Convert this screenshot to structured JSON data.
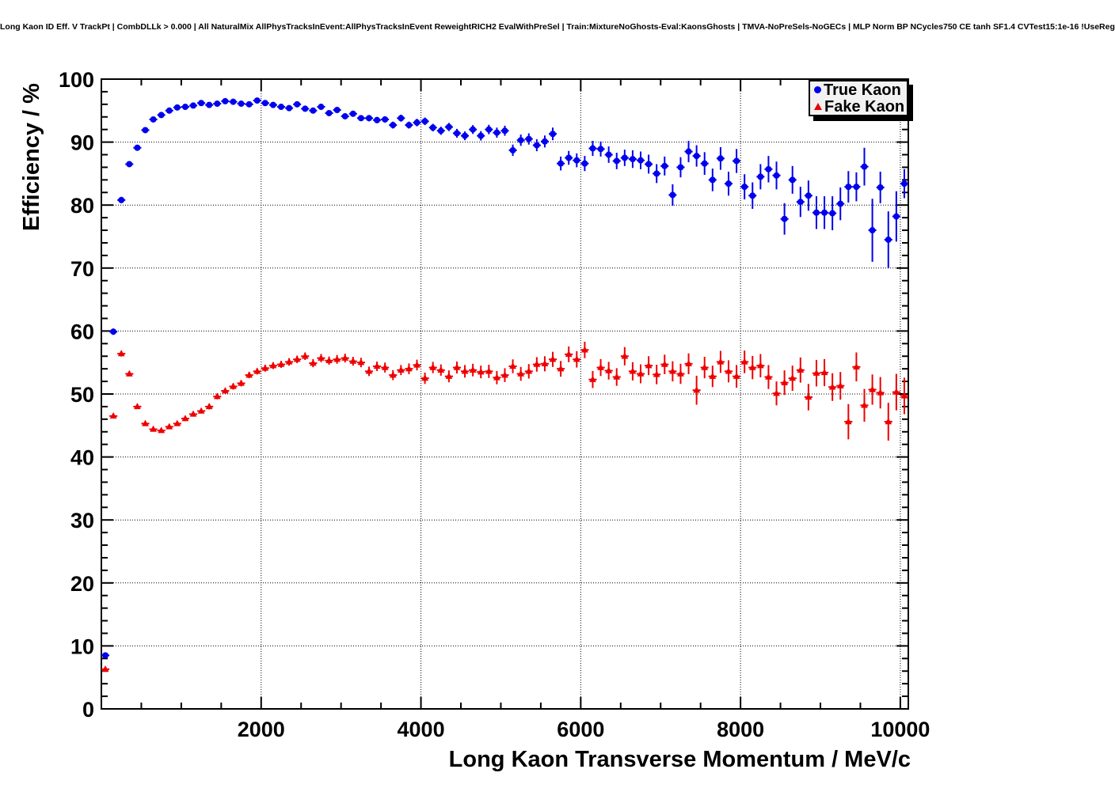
{
  "title": "Long Kaon ID Eff. V TrackPt | CombDLLk > 0.000 | All NaturalMix AllPhysTracksInEvent:AllPhysTracksInEvent ReweightRICH2 EvalWithPreSel | Train:MixtureNoGhosts-Eval:KaonsGhosts | TMVA-NoPreSels-NoGECs | MLP Norm BP NCycles750 CE tanh SF1.4 CVTest15:1e-16 !UseReg",
  "legend": {
    "items": [
      {
        "label": "True Kaon",
        "color": "#0000ee",
        "marker": "circle"
      },
      {
        "label": "Fake Kaon",
        "color": "#ee0000",
        "marker": "triangle"
      }
    ]
  },
  "chart_data": {
    "type": "scatter",
    "title": "Long Kaon ID Eff. V TrackPt",
    "xlabel": "Long Kaon Transverse Momentum / MeV/c",
    "ylabel": "Efficiency / %",
    "xlim": [
      0,
      10100
    ],
    "ylim": [
      0,
      100
    ],
    "xticks": [
      2000,
      4000,
      6000,
      8000,
      10000
    ],
    "xtick_labels": [
      "2000",
      "4000",
      "6000",
      "8000",
      "10000"
    ],
    "x_minor_step": 500,
    "yticks": [
      0,
      10,
      20,
      30,
      40,
      50,
      60,
      70,
      80,
      90,
      100
    ],
    "ytick_labels": [
      "0",
      "10",
      "20",
      "30",
      "40",
      "50",
      "60",
      "70",
      "80",
      "90",
      "100"
    ],
    "y_minor_step": 2,
    "grid": "dotted",
    "legend_position": "top-right",
    "bin_half_width": 50,
    "x": [
      50,
      150,
      250,
      350,
      450,
      550,
      650,
      750,
      850,
      950,
      1050,
      1150,
      1250,
      1350,
      1450,
      1550,
      1650,
      1750,
      1850,
      1950,
      2050,
      2150,
      2250,
      2350,
      2450,
      2550,
      2650,
      2750,
      2850,
      2950,
      3050,
      3150,
      3250,
      3350,
      3450,
      3550,
      3650,
      3750,
      3850,
      3950,
      4050,
      4150,
      4250,
      4350,
      4450,
      4550,
      4650,
      4750,
      4850,
      4950,
      5050,
      5150,
      5250,
      5350,
      5450,
      5550,
      5650,
      5750,
      5850,
      5950,
      6050,
      6150,
      6250,
      6350,
      6450,
      6550,
      6650,
      6750,
      6850,
      6950,
      7050,
      7150,
      7250,
      7350,
      7450,
      7550,
      7650,
      7750,
      7850,
      7950,
      8050,
      8150,
      8250,
      8350,
      8450,
      8550,
      8650,
      8750,
      8850,
      8950,
      9050,
      9150,
      9250,
      9350,
      9450,
      9550,
      9650,
      9750,
      9850,
      9950,
      10050
    ],
    "series": [
      {
        "name": "True Kaon",
        "color": "#0000ee",
        "marker": "circle",
        "y": [
          8.5,
          59.9,
          80.8,
          86.5,
          89.1,
          91.9,
          93.6,
          94.3,
          95.0,
          95.5,
          95.6,
          95.8,
          96.2,
          95.9,
          96.1,
          96.5,
          96.4,
          96.1,
          96.0,
          96.6,
          96.2,
          95.9,
          95.6,
          95.4,
          96.0,
          95.3,
          95.0,
          95.6,
          94.6,
          95.1,
          94.1,
          94.5,
          93.8,
          93.8,
          93.5,
          93.6,
          92.7,
          93.8,
          92.7,
          93.1,
          93.3,
          92.3,
          91.8,
          92.4,
          91.4,
          91.0,
          92.0,
          91.0,
          92.0,
          91.5,
          91.8,
          88.7,
          90.3,
          90.5,
          89.5,
          90.1,
          91.3,
          86.6,
          87.5,
          87.1,
          86.6,
          89.0,
          88.9,
          88.0,
          87.0,
          87.5,
          87.3,
          87.1,
          86.5,
          85.0,
          86.2,
          81.6,
          86.0,
          88.5,
          87.8,
          86.6,
          84.0,
          87.4,
          83.4,
          87.0,
          82.9,
          81.5,
          84.5,
          85.7,
          84.7,
          77.8,
          84.0,
          80.5,
          81.5,
          78.8,
          78.8,
          78.7,
          80.2,
          82.9,
          82.9,
          86.1,
          76.0,
          82.8,
          74.5,
          78.2,
          83.4
        ],
        "yerr": [
          0.4,
          0.5,
          0.5,
          0.45,
          0.4,
          0.35,
          0.3,
          0.3,
          0.3,
          0.25,
          0.25,
          0.25,
          0.25,
          0.25,
          0.25,
          0.25,
          0.25,
          0.3,
          0.3,
          0.3,
          0.3,
          0.3,
          0.3,
          0.35,
          0.35,
          0.35,
          0.4,
          0.4,
          0.4,
          0.4,
          0.45,
          0.45,
          0.45,
          0.5,
          0.5,
          0.5,
          0.55,
          0.55,
          0.55,
          0.6,
          0.6,
          0.6,
          0.65,
          0.65,
          0.7,
          0.7,
          0.7,
          0.75,
          0.75,
          0.8,
          0.8,
          0.9,
          0.9,
          0.9,
          0.95,
          0.95,
          1.0,
          1.1,
          1.1,
          1.1,
          1.2,
          1.2,
          1.2,
          1.3,
          1.3,
          1.3,
          1.4,
          1.4,
          1.5,
          1.5,
          1.5,
          1.7,
          1.6,
          1.7,
          1.7,
          1.8,
          1.8,
          1.8,
          1.9,
          1.9,
          2.0,
          2.1,
          2.0,
          2.1,
          2.2,
          2.5,
          2.2,
          2.4,
          2.4,
          2.6,
          2.6,
          2.7,
          2.6,
          2.5,
          2.3,
          3.0,
          5.0,
          2.5,
          4.5,
          4.0,
          2.3
        ]
      },
      {
        "name": "Fake Kaon",
        "color": "#ee0000",
        "marker": "triangle",
        "y": [
          6.3,
          46.5,
          56.4,
          53.2,
          48.0,
          45.3,
          44.4,
          44.2,
          44.8,
          45.3,
          46.1,
          46.8,
          47.3,
          48.0,
          49.6,
          50.5,
          51.2,
          51.7,
          53.0,
          53.6,
          54.1,
          54.5,
          54.7,
          55.1,
          55.5,
          56.0,
          54.9,
          55.7,
          55.3,
          55.5,
          55.7,
          55.2,
          55.0,
          53.6,
          54.4,
          54.2,
          53.0,
          53.8,
          54.0,
          54.6,
          52.5,
          54.2,
          53.8,
          52.8,
          54.2,
          53.6,
          53.8,
          53.5,
          53.6,
          52.6,
          53.0,
          54.4,
          53.2,
          53.6,
          54.7,
          54.8,
          55.5,
          54.0,
          56.3,
          55.5,
          57.0,
          52.3,
          54.2,
          53.7,
          52.7,
          56.0,
          53.6,
          53.2,
          54.5,
          53.1,
          54.7,
          53.6,
          53.2,
          54.8,
          50.6,
          54.2,
          52.8,
          55.1,
          53.6,
          52.8,
          55.1,
          54.2,
          54.5,
          52.7,
          50.1,
          51.8,
          52.5,
          53.8,
          49.5,
          53.3,
          53.4,
          51.1,
          51.3,
          45.6,
          54.3,
          48.2,
          50.7,
          50.2,
          45.6,
          50.3,
          49.7
        ],
        "yerr": [
          0.3,
          0.4,
          0.45,
          0.4,
          0.4,
          0.4,
          0.35,
          0.35,
          0.35,
          0.35,
          0.4,
          0.4,
          0.4,
          0.45,
          0.45,
          0.45,
          0.5,
          0.5,
          0.5,
          0.5,
          0.55,
          0.55,
          0.55,
          0.6,
          0.6,
          0.6,
          0.65,
          0.65,
          0.65,
          0.7,
          0.7,
          0.7,
          0.75,
          0.75,
          0.75,
          0.8,
          0.8,
          0.8,
          0.85,
          0.85,
          0.9,
          0.9,
          0.9,
          0.95,
          0.95,
          1.0,
          1.0,
          1.0,
          1.05,
          1.05,
          1.1,
          1.1,
          1.1,
          1.15,
          1.15,
          1.2,
          1.2,
          1.25,
          1.25,
          1.3,
          1.3,
          1.35,
          1.35,
          1.4,
          1.4,
          1.45,
          1.45,
          1.5,
          1.5,
          1.55,
          1.55,
          1.6,
          1.6,
          1.65,
          2.3,
          1.7,
          1.7,
          1.75,
          1.75,
          1.8,
          1.8,
          1.85,
          1.85,
          1.9,
          1.9,
          1.95,
          2.0,
          2.0,
          2.1,
          2.1,
          2.15,
          2.2,
          2.2,
          2.8,
          2.3,
          2.6,
          2.4,
          2.5,
          3.0,
          2.9,
          2.9
        ]
      }
    ]
  }
}
